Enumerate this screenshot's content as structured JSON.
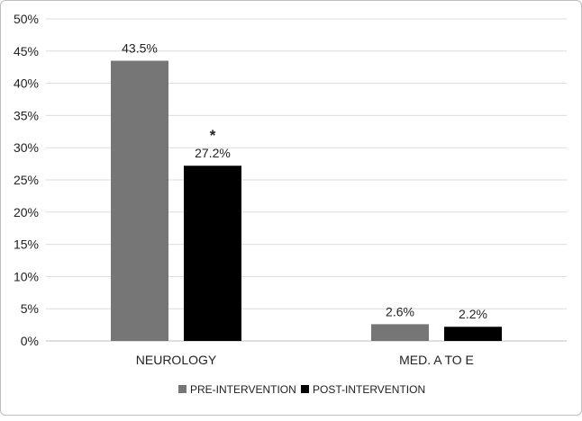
{
  "chart_data": {
    "type": "bar",
    "categories": [
      "NEUROLOGY",
      "MED. A TO E"
    ],
    "series": [
      {
        "name": "PRE-INTERVENTION",
        "values": [
          43.5,
          2.6
        ],
        "color": "#767676"
      },
      {
        "name": "POST-INTERVENTION",
        "values": [
          27.2,
          2.2
        ],
        "color": "#000000"
      }
    ],
    "data_labels": [
      [
        "43.5%",
        "2.6%"
      ],
      [
        "27.2%",
        "2.2%"
      ]
    ],
    "annotations": [
      {
        "text": "*",
        "category": "NEUROLOGY",
        "series": "POST-INTERVENTION"
      }
    ],
    "y_ticks": [
      "0%",
      "5%",
      "10%",
      "15%",
      "20%",
      "25%",
      "30%",
      "35%",
      "40%",
      "45%",
      "50%"
    ],
    "ylim": [
      0,
      50
    ],
    "ytick_step": 5,
    "grid": true,
    "legend_position": "bottom",
    "title": "",
    "xlabel": "",
    "ylabel": ""
  }
}
